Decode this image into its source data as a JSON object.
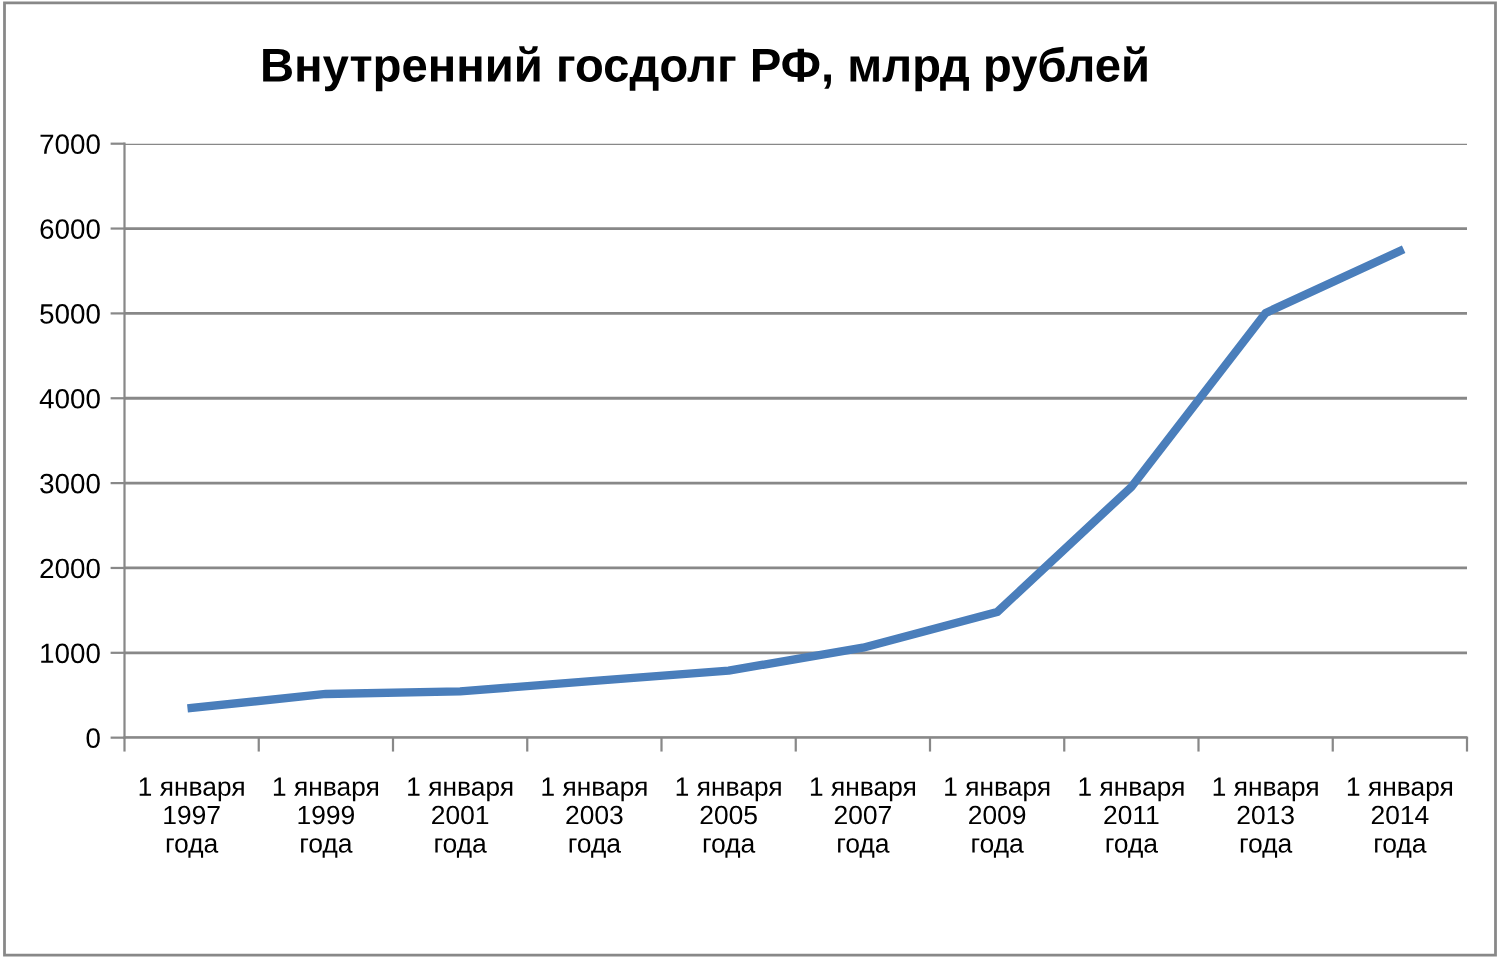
{
  "chart_data": {
    "type": "line",
    "title": "Внутренний госдолг РФ, млрд рублей",
    "categories": [
      "1 января\n1997\nгода",
      "1 января\n1999\nгода",
      "1 января\n2001\nгода",
      "1 января\n2003\nгода",
      "1 января\n2005\nгода",
      "1 января\n2007\nгода",
      "1 января\n2009\nгода",
      "1 января\n2011\nгода",
      "1 января\n2013\nгода",
      "1 января\n2014\nгода"
    ],
    "series": [
      {
        "color": "#4a7ebb",
        "values": [
          350,
          515,
          545,
          670,
          790,
          1060,
          1480,
          2955,
          5005,
          5735
        ]
      }
    ],
    "ylim": [
      0,
      7000
    ],
    "yticks": [
      0,
      1000,
      2000,
      3000,
      4000,
      5000,
      6000,
      7000
    ],
    "grid": "y",
    "legend": false,
    "marker": "none",
    "line_style": "solid"
  }
}
